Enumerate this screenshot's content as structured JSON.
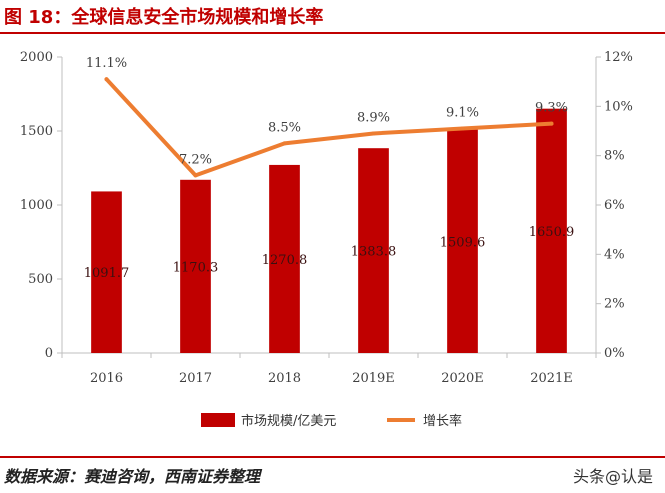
{
  "header": {
    "title": "图 18：全球信息安全市场规模和增长率"
  },
  "footer": {
    "source": "数据来源：赛迪咨询，西南证券整理",
    "watermark": "头条@认是"
  },
  "colors": {
    "bar": "#c00000",
    "line": "#ed7d31",
    "title": "#c00000"
  },
  "chart_data": {
    "type": "bar",
    "categories": [
      "2016",
      "2017",
      "2018",
      "2019E",
      "2020E",
      "2021E"
    ],
    "series": [
      {
        "name": "市场规模/亿美元",
        "type": "bar",
        "axis": "left",
        "values": [
          1091.7,
          1170.3,
          1270.8,
          1383.8,
          1509.6,
          1650.9
        ],
        "labels": [
          "1091.7",
          "1170.3",
          "1270.8",
          "1383.8",
          "1509.6",
          "1650.9"
        ]
      },
      {
        "name": "增长率",
        "type": "line",
        "axis": "right",
        "values": [
          11.1,
          7.2,
          8.5,
          8.9,
          9.1,
          9.3
        ],
        "labels": [
          "11.1%",
          "7.2%",
          "8.5%",
          "8.9%",
          "9.1%",
          "9.3%"
        ]
      }
    ],
    "y_left": {
      "min": 0,
      "max": 2000,
      "ticks": [
        "0",
        "500",
        "1000",
        "1500",
        "2000"
      ]
    },
    "y_right": {
      "min": 0,
      "max": 12,
      "ticks": [
        "0%",
        "2%",
        "4%",
        "6%",
        "8%",
        "10%",
        "12%"
      ]
    },
    "legend": "bottom",
    "grid": false
  }
}
